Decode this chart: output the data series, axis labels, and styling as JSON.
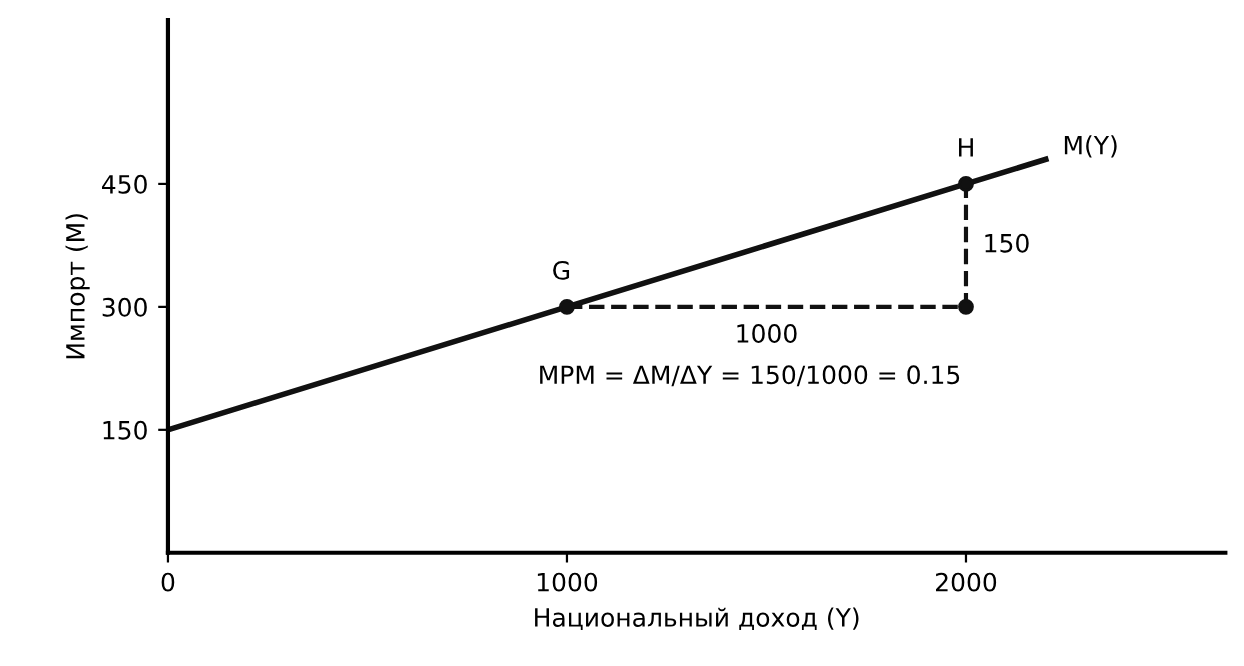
{
  "chart_data": {
    "type": "line",
    "xlabel": "Национальный доход (Y)",
    "ylabel": "Импорт (M)",
    "xlim": [
      0,
      2650
    ],
    "ylim": [
      0,
      650
    ],
    "xticks": [
      0,
      1000,
      2000
    ],
    "yticks": [
      150,
      300,
      450
    ],
    "grid": false,
    "legend": false,
    "series": [
      {
        "x": [
          0,
          1000,
          2000,
          2200
        ],
        "values": [
          150,
          300,
          450,
          480
        ],
        "color": "#111111",
        "line_style": "solid",
        "marker": "none"
      },
      {
        "x": [
          1000,
          2000,
          2000
        ],
        "values": [
          300,
          300,
          450
        ],
        "color": "#111111",
        "line_style": "dashed",
        "marker": "none"
      },
      {
        "type": "scatter",
        "x": [
          1000,
          2000,
          2000
        ],
        "values": [
          300,
          450,
          300
        ],
        "color": "#111111",
        "marker": "circle"
      }
    ],
    "annotations": [
      {
        "text": "G",
        "x": 1000,
        "y": 300
      },
      {
        "text": "H",
        "x": 2000,
        "y": 450
      },
      {
        "text": "M(Y)",
        "x": 2200,
        "y": 480
      },
      {
        "text": "1000",
        "x": 1500,
        "y": 300
      },
      {
        "text": "150",
        "x": 2000,
        "y": 375
      },
      "MPM = ΔM/ΔY = 150/1000 = 0.15"
    ]
  }
}
